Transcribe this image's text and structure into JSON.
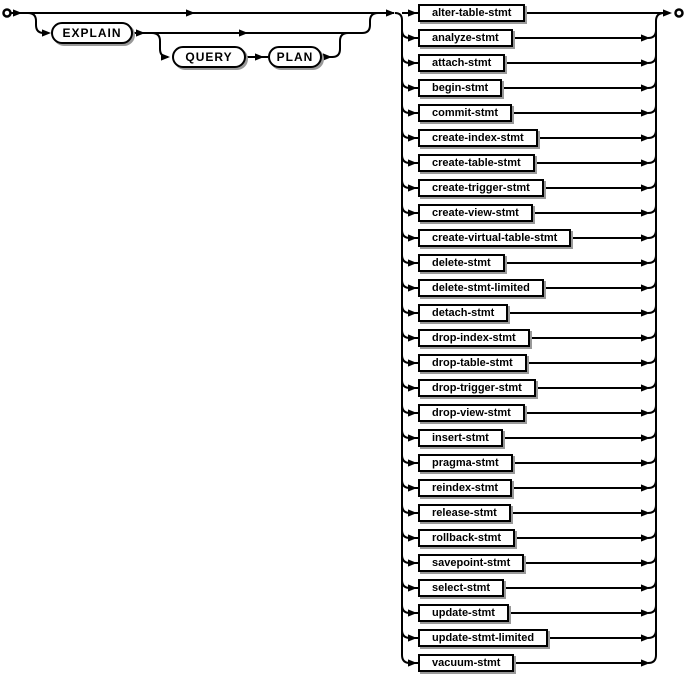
{
  "diagram": {
    "keywords": {
      "explain": "EXPLAIN",
      "query": "QUERY",
      "plan": "PLAN"
    },
    "statements": [
      "alter-table-stmt",
      "analyze-stmt",
      "attach-stmt",
      "begin-stmt",
      "commit-stmt",
      "create-index-stmt",
      "create-table-stmt",
      "create-trigger-stmt",
      "create-view-stmt",
      "create-virtual-table-stmt",
      "delete-stmt",
      "delete-stmt-limited",
      "detach-stmt",
      "drop-index-stmt",
      "drop-table-stmt",
      "drop-trigger-stmt",
      "drop-view-stmt",
      "insert-stmt",
      "pragma-stmt",
      "reindex-stmt",
      "release-stmt",
      "rollback-stmt",
      "savepoint-stmt",
      "select-stmt",
      "update-stmt",
      "update-stmt-limited",
      "vacuum-stmt"
    ],
    "colors": {
      "line": "#000000",
      "node_border": "#000000",
      "node_fill": "#ffffff",
      "shadow": "#999999",
      "text": "#000000",
      "background": "#ffffff"
    }
  }
}
